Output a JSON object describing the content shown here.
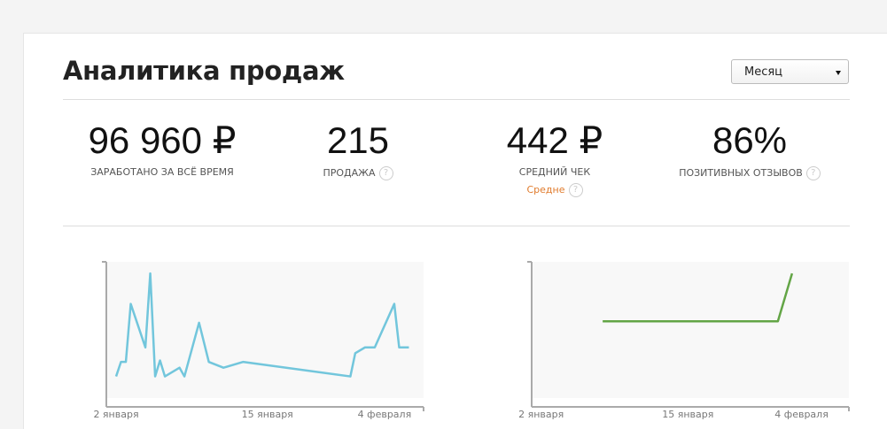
{
  "header": {
    "title": "Аналитика продаж",
    "period": "Месяц"
  },
  "stats": [
    {
      "value": "96 960 ₽",
      "label": "ЗАРАБОТАНО ЗА ВСЁ ВРЕМЯ"
    },
    {
      "value": "215",
      "label": "ПРОДАЖА",
      "help": "?"
    },
    {
      "value": "442 ₽",
      "label": "СРЕДНИЙ ЧЕК",
      "note": "Средне",
      "note_help": "?"
    },
    {
      "value": "86%",
      "label": "ПОЗИТИВНЫХ ОТЗЫВОВ",
      "help": "?"
    }
  ],
  "charts": [
    {
      "type": "line",
      "color": "#72c6dc",
      "x": [
        0,
        1,
        2,
        3,
        6,
        7,
        8,
        9,
        10,
        13,
        14,
        17,
        19,
        22,
        26,
        48,
        49,
        51,
        53,
        57,
        58,
        60
      ],
      "values": [
        21,
        31,
        31,
        71,
        41,
        92,
        21,
        32,
        21,
        27,
        21,
        58,
        31,
        27,
        31,
        21,
        37,
        41,
        41,
        71,
        41,
        41
      ],
      "xlim": [
        -2,
        63
      ],
      "ylim": [
        0,
        100
      ],
      "xticks": [
        {
          "value": 0,
          "label": "2 января"
        },
        {
          "value": 31,
          "label": "15 января"
        },
        {
          "value": 55,
          "label": "4 февраля"
        }
      ]
    },
    {
      "type": "line",
      "color": "#63a546",
      "x": [
        13,
        50,
        53
      ],
      "values": [
        59,
        59,
        92
      ],
      "xlim": [
        -2,
        65
      ],
      "ylim": [
        0,
        100
      ],
      "xticks": [
        {
          "value": 0,
          "label": "2 января"
        },
        {
          "value": 31,
          "label": "15 января"
        },
        {
          "value": 55,
          "label": "4 февраля"
        }
      ]
    }
  ]
}
